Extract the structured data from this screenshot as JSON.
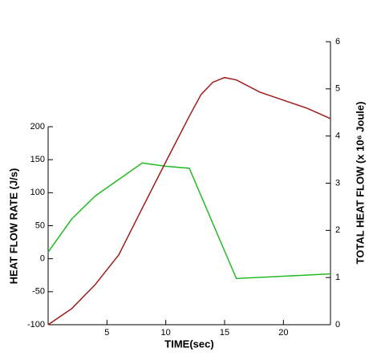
{
  "chart_data": {
    "type": "line",
    "x_label": "TIME(sec)",
    "y_label": "HEAT FLOW RATE (J/s)",
    "y2_label": "TOTAL HEAT FLOW (x 10⁶ Joule)",
    "xlim": [
      0,
      24
    ],
    "xticks": [
      5,
      10,
      15,
      20
    ],
    "ylim": [
      -100,
      200
    ],
    "yticks": [
      -100,
      -50,
      0,
      50,
      100,
      150,
      200
    ],
    "y2lim": [
      0,
      6
    ],
    "y2ticks": [
      0,
      1,
      2,
      3,
      4,
      5,
      6
    ],
    "series": [
      {
        "color": "#22bb22",
        "x": [
          0,
          2,
          4,
          6,
          8,
          10,
          12,
          16,
          24
        ],
        "values": [
          10,
          60,
          95,
          120,
          145,
          140,
          137,
          -30,
          -23
        ]
      },
      {
        "color": "#a01c1c",
        "axis": "y2",
        "x": [
          0,
          2,
          4,
          6,
          8,
          10,
          12,
          13,
          14,
          15,
          16,
          18,
          20,
          22,
          24
        ],
        "values": [
          0,
          0.34,
          0.85,
          1.48,
          2.47,
          3.45,
          4.42,
          4.88,
          5.14,
          5.24,
          5.19,
          4.93,
          4.76,
          4.59,
          4.37
        ]
      }
    ]
  }
}
